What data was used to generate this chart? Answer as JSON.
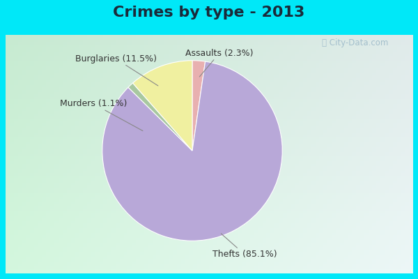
{
  "title": "Crimes by type - 2013",
  "slices": [
    {
      "label": "Thefts (85.1%)",
      "value": 85.1,
      "color": "#b8a8d8"
    },
    {
      "label": "Assaults (2.3%)",
      "value": 2.3,
      "color": "#e8b0b0"
    },
    {
      "label": "Burglaries (11.5%)",
      "value": 11.5,
      "color": "#f0f0a0"
    },
    {
      "label": "Murders (1.1%)",
      "value": 1.1,
      "color": "#a8c8a0"
    }
  ],
  "bg_cyan": "#00e8f8",
  "bg_main": "#c8e8d0",
  "watermark": "ⓘ City-Data.com",
  "title_fontsize": 16,
  "label_fontsize": 9,
  "startangle": 90
}
